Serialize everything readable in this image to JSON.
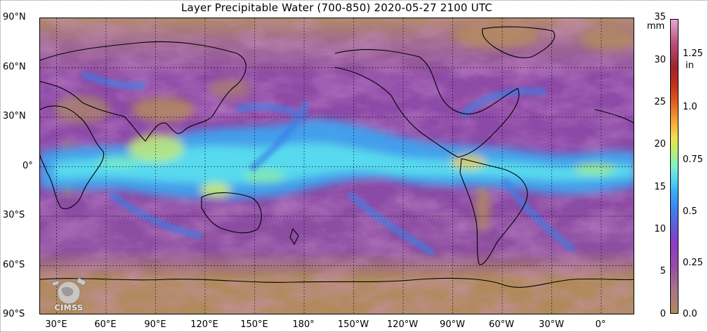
{
  "title": "Layer Precipitable Water (700-850)  2020-05-27 2100 UTC",
  "latitude_labels": [
    "90°N",
    "60°N",
    "30°N",
    "0°",
    "30°S",
    "60°S",
    "90°S"
  ],
  "longitude_labels": [
    "30°E",
    "60°E",
    "90°E",
    "120°E",
    "150°E",
    "180°",
    "150°W",
    "120°W",
    "90°W",
    "60°W",
    "30°W",
    "0°"
  ],
  "colorbar": {
    "mm_unit": "mm",
    "in_unit": "in",
    "mm_ticks": [
      "35",
      "30",
      "25",
      "20",
      "15",
      "10",
      "5",
      "0"
    ],
    "in_ticks": [
      "1.25",
      "1.0",
      "0.75",
      "0.5",
      "0.25",
      "0.0"
    ],
    "range_mm": [
      0,
      35
    ]
  },
  "logo": {
    "text": "CIMSS",
    "icon": "satellite-globe-logo"
  },
  "colors": {
    "dry": "#b08a5c",
    "moderate": "#9a4aa8",
    "moist": "#3aaaf7",
    "very_moist": "#b8f070",
    "land_outline": "#000000"
  }
}
